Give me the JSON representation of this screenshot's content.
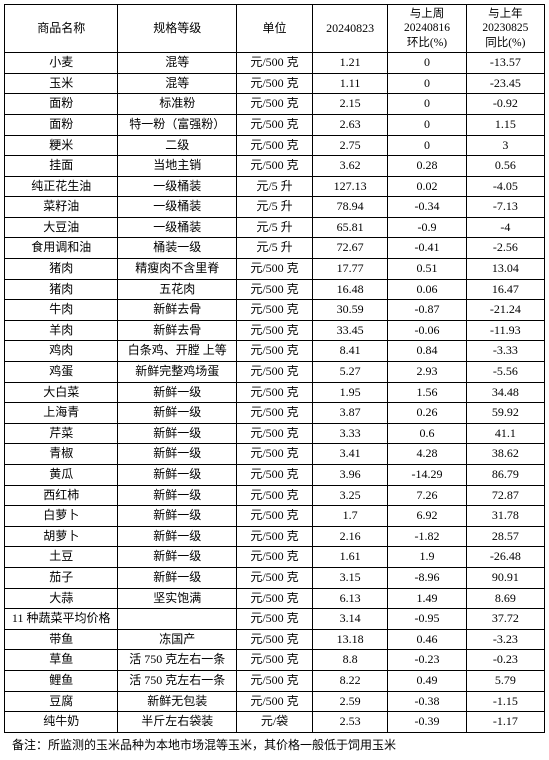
{
  "table": {
    "columns": [
      {
        "key": "name",
        "label": "商品名称"
      },
      {
        "key": "spec",
        "label": "规格等级"
      },
      {
        "key": "unit",
        "label": "单位"
      },
      {
        "key": "v0",
        "label": "20240823"
      },
      {
        "key": "v1",
        "label_lines": [
          "与上周",
          "20240816",
          "环比(%)"
        ]
      },
      {
        "key": "v2",
        "label_lines": [
          "与上年",
          "20230825",
          "同比(%)"
        ]
      }
    ],
    "rows": [
      {
        "name": "小麦",
        "spec": "混等",
        "unit": "元/500 克",
        "v0": "1.21",
        "v1": "0",
        "v2": "-13.57"
      },
      {
        "name": "玉米",
        "spec": "混等",
        "unit": "元/500 克",
        "v0": "1.11",
        "v1": "0",
        "v2": "-23.45"
      },
      {
        "name": "面粉",
        "spec": "标准粉",
        "unit": "元/500 克",
        "v0": "2.15",
        "v1": "0",
        "v2": "-0.92"
      },
      {
        "name": "面粉",
        "spec": "特一粉（富强粉）",
        "unit": "元/500 克",
        "v0": "2.63",
        "v1": "0",
        "v2": "1.15"
      },
      {
        "name": "粳米",
        "spec": "二级",
        "unit": "元/500 克",
        "v0": "2.75",
        "v1": "0",
        "v2": "3"
      },
      {
        "name": "挂面",
        "spec": "当地主销",
        "unit": "元/500 克",
        "v0": "3.62",
        "v1": "0.28",
        "v2": "0.56"
      },
      {
        "name": "纯正花生油",
        "spec": "一级桶装",
        "unit": "元/5 升",
        "v0": "127.13",
        "v1": "0.02",
        "v2": "-4.05"
      },
      {
        "name": "菜籽油",
        "spec": "一级桶装",
        "unit": "元/5 升",
        "v0": "78.94",
        "v1": "-0.34",
        "v2": "-7.13"
      },
      {
        "name": "大豆油",
        "spec": "一级桶装",
        "unit": "元/5 升",
        "v0": "65.81",
        "v1": "-0.9",
        "v2": "-4"
      },
      {
        "name": "食用调和油",
        "spec": "桶装一级",
        "unit": "元/5 升",
        "v0": "72.67",
        "v1": "-0.41",
        "v2": "-2.56"
      },
      {
        "name": "猪肉",
        "spec": "精瘦肉不含里脊",
        "unit": "元/500 克",
        "v0": "17.77",
        "v1": "0.51",
        "v2": "13.04"
      },
      {
        "name": "猪肉",
        "spec": "五花肉",
        "unit": "元/500 克",
        "v0": "16.48",
        "v1": "0.06",
        "v2": "16.47"
      },
      {
        "name": "牛肉",
        "spec": "新鲜去骨",
        "unit": "元/500 克",
        "v0": "30.59",
        "v1": "-0.87",
        "v2": "-21.24"
      },
      {
        "name": "羊肉",
        "spec": "新鲜去骨",
        "unit": "元/500 克",
        "v0": "33.45",
        "v1": "-0.06",
        "v2": "-11.93"
      },
      {
        "name": "鸡肉",
        "spec": "白条鸡、开膛 上等",
        "unit": "元/500 克",
        "v0": "8.41",
        "v1": "0.84",
        "v2": "-3.33"
      },
      {
        "name": "鸡蛋",
        "spec": "新鲜完整鸡场蛋",
        "unit": "元/500 克",
        "v0": "5.27",
        "v1": "2.93",
        "v2": "-5.56"
      },
      {
        "name": "大白菜",
        "spec": "新鲜一级",
        "unit": "元/500 克",
        "v0": "1.95",
        "v1": "1.56",
        "v2": "34.48"
      },
      {
        "name": "上海青",
        "spec": "新鲜一级",
        "unit": "元/500 克",
        "v0": "3.87",
        "v1": "0.26",
        "v2": "59.92"
      },
      {
        "name": "芹菜",
        "spec": "新鲜一级",
        "unit": "元/500 克",
        "v0": "3.33",
        "v1": "0.6",
        "v2": "41.1"
      },
      {
        "name": "青椒",
        "spec": "新鲜一级",
        "unit": "元/500 克",
        "v0": "3.41",
        "v1": "4.28",
        "v2": "38.62"
      },
      {
        "name": "黄瓜",
        "spec": "新鲜一级",
        "unit": "元/500 克",
        "v0": "3.96",
        "v1": "-14.29",
        "v2": "86.79"
      },
      {
        "name": "西红柿",
        "spec": "新鲜一级",
        "unit": "元/500 克",
        "v0": "3.25",
        "v1": "7.26",
        "v2": "72.87"
      },
      {
        "name": "白萝卜",
        "spec": "新鲜一级",
        "unit": "元/500 克",
        "v0": "1.7",
        "v1": "6.92",
        "v2": "31.78"
      },
      {
        "name": "胡萝卜",
        "spec": "新鲜一级",
        "unit": "元/500 克",
        "v0": "2.16",
        "v1": "-1.82",
        "v2": "28.57"
      },
      {
        "name": "土豆",
        "spec": "新鲜一级",
        "unit": "元/500 克",
        "v0": "1.61",
        "v1": "1.9",
        "v2": "-26.48"
      },
      {
        "name": "茄子",
        "spec": "新鲜一级",
        "unit": "元/500 克",
        "v0": "3.15",
        "v1": "-8.96",
        "v2": "90.91"
      },
      {
        "name": "大蒜",
        "spec": "坚实饱满",
        "unit": "元/500 克",
        "v0": "6.13",
        "v1": "1.49",
        "v2": "8.69"
      },
      {
        "name": "11 种蔬菜平均价格",
        "spec": "",
        "unit": "元/500 克",
        "v0": "3.14",
        "v1": "-0.95",
        "v2": "37.72"
      },
      {
        "name": "带鱼",
        "spec": "冻国产",
        "unit": "元/500 克",
        "v0": "13.18",
        "v1": "0.46",
        "v2": "-3.23"
      },
      {
        "name": "草鱼",
        "spec": "活 750 克左右一条",
        "unit": "元/500 克",
        "v0": "8.8",
        "v1": "-0.23",
        "v2": "-0.23"
      },
      {
        "name": "鲤鱼",
        "spec": "活 750 克左右一条",
        "unit": "元/500 克",
        "v0": "8.22",
        "v1": "0.49",
        "v2": "5.79"
      },
      {
        "name": "豆腐",
        "spec": "新鲜无包装",
        "unit": "元/500 克",
        "v0": "2.59",
        "v1": "-0.38",
        "v2": "-1.15"
      },
      {
        "name": "纯牛奶",
        "spec": "半斤左右袋装",
        "unit": "元/袋",
        "v0": "2.53",
        "v1": "-0.39",
        "v2": "-1.17"
      }
    ],
    "footnote": "备注：所监测的玉米品种为本地市场混等玉米，其价格一般低于饲用玉米",
    "border_color": "#000000",
    "background_color": "#ffffff",
    "font_size_data": 12,
    "font_size_header": 12
  }
}
